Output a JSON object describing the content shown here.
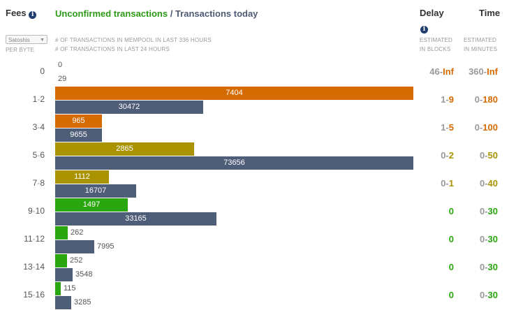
{
  "header": {
    "fees_label": "Fees",
    "title_unconfirmed": "Unconfirmed transactions",
    "title_sep": " / ",
    "title_today": "Transactions today",
    "delay_label": "Delay",
    "time_label": "Time"
  },
  "unit_select": {
    "value": "Satoshis",
    "sub": "PER BYTE"
  },
  "legend": {
    "line1": "# OF TRANSACTIONS IN MEMPOOL IN LAST 336 HOURS",
    "line2": "# OF TRANSACTIONS IN LAST 24 HOURS"
  },
  "subheads": {
    "delay1": "ESTIMATED",
    "delay2": "IN BLOCKS",
    "time1": "ESTIMATED",
    "time2": "IN MINUTES"
  },
  "colors": {
    "orange": "#d56a00",
    "olive": "#a99300",
    "green": "#2aa70f",
    "navy": "#4e5d78",
    "gray": "#999999"
  },
  "bar_scale_max": 7404,
  "today_scale_max": 73656,
  "rows": [
    {
      "lo": "0",
      "hi": "",
      "mempool": 0,
      "today": 29,
      "color": "gray",
      "delay_lo": "46",
      "delay_hi": "Inf",
      "time_lo": "360",
      "time_hi": "Inf",
      "hi_color": "orange"
    },
    {
      "lo": "1",
      "hi": "2",
      "mempool": 7404,
      "today": 30472,
      "color": "orange",
      "delay_lo": "1",
      "delay_hi": "9",
      "time_lo": "0",
      "time_hi": "180",
      "hi_color": "orange"
    },
    {
      "lo": "3",
      "hi": "4",
      "mempool": 965,
      "today": 9655,
      "color": "orange",
      "delay_lo": "1",
      "delay_hi": "5",
      "time_lo": "0",
      "time_hi": "100",
      "hi_color": "orange"
    },
    {
      "lo": "5",
      "hi": "6",
      "mempool": 2865,
      "today": 73656,
      "color": "olive",
      "delay_lo": "0",
      "delay_hi": "2",
      "time_lo": "0",
      "time_hi": "50",
      "hi_color": "olive"
    },
    {
      "lo": "7",
      "hi": "8",
      "mempool": 1112,
      "today": 16707,
      "color": "olive",
      "delay_lo": "0",
      "delay_hi": "1",
      "time_lo": "0",
      "time_hi": "40",
      "hi_color": "olive"
    },
    {
      "lo": "9",
      "hi": "10",
      "mempool": 1497,
      "today": 33165,
      "color": "green",
      "delay_lo": "",
      "delay_hi": "0",
      "time_lo": "0",
      "time_hi": "30",
      "hi_color": "green"
    },
    {
      "lo": "11",
      "hi": "12",
      "mempool": 262,
      "today": 7995,
      "color": "green",
      "delay_lo": "",
      "delay_hi": "0",
      "time_lo": "0",
      "time_hi": "30",
      "hi_color": "green"
    },
    {
      "lo": "13",
      "hi": "14",
      "mempool": 252,
      "today": 3548,
      "color": "green",
      "delay_lo": "",
      "delay_hi": "0",
      "time_lo": "0",
      "time_hi": "30",
      "hi_color": "green"
    },
    {
      "lo": "15",
      "hi": "16",
      "mempool": 115,
      "today": 3285,
      "color": "green",
      "delay_lo": "",
      "delay_hi": "0",
      "time_lo": "0",
      "time_hi": "30",
      "hi_color": "green"
    }
  ]
}
